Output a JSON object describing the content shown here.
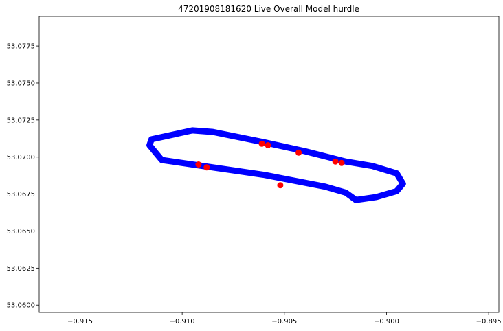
{
  "chart_data": {
    "type": "scatter",
    "title": "47201908181620 Live Overall Model hurdle",
    "xlabel": "",
    "ylabel": "",
    "xlim": [
      -0.917,
      -0.8945
    ],
    "ylim": [
      53.0595,
      53.0795
    ],
    "xticks": [
      -0.915,
      -0.91,
      -0.905,
      -0.9,
      -0.895
    ],
    "xtick_labels": [
      "−0.915",
      "−0.910",
      "−0.905",
      "−0.900",
      "−0.895"
    ],
    "yticks": [
      53.06,
      53.0625,
      53.065,
      53.0675,
      53.07,
      53.0725,
      53.075,
      53.0775
    ],
    "ytick_labels": [
      "53.0600",
      "53.0625",
      "53.0650",
      "53.0675",
      "53.0700",
      "53.0725",
      "53.0750",
      "53.0775"
    ],
    "grid": false,
    "series": [
      {
        "color": "#0000ff",
        "track": [
          [
            -0.9095,
            53.0718
          ],
          [
            -0.9115,
            53.0712
          ],
          [
            -0.9116,
            53.0708
          ],
          [
            -0.911,
            53.0698
          ],
          [
            -0.9095,
            53.0695
          ],
          [
            -0.906,
            53.0688
          ],
          [
            -0.903,
            53.068
          ],
          [
            -0.902,
            53.0676
          ],
          [
            -0.9015,
            53.0671
          ],
          [
            -0.9005,
            53.0673
          ],
          [
            -0.8995,
            53.0677
          ],
          [
            -0.8992,
            53.0682
          ],
          [
            -0.8995,
            53.0689
          ],
          [
            -0.9007,
            53.0694
          ],
          [
            -0.902,
            53.0697
          ],
          [
            -0.904,
            53.0704
          ],
          [
            -0.906,
            53.071
          ],
          [
            -0.9085,
            53.0717
          ],
          [
            -0.9095,
            53.0718
          ]
        ]
      },
      {
        "color": "#ff0000",
        "points": [
          [
            -0.9061,
            53.0709
          ],
          [
            -0.9058,
            53.0708
          ],
          [
            -0.9043,
            53.0703
          ],
          [
            -0.9025,
            53.0697
          ],
          [
            -0.9022,
            53.0696
          ],
          [
            -0.9092,
            53.0695
          ],
          [
            -0.9088,
            53.0693
          ],
          [
            -0.9052,
            53.0681
          ]
        ]
      }
    ]
  }
}
